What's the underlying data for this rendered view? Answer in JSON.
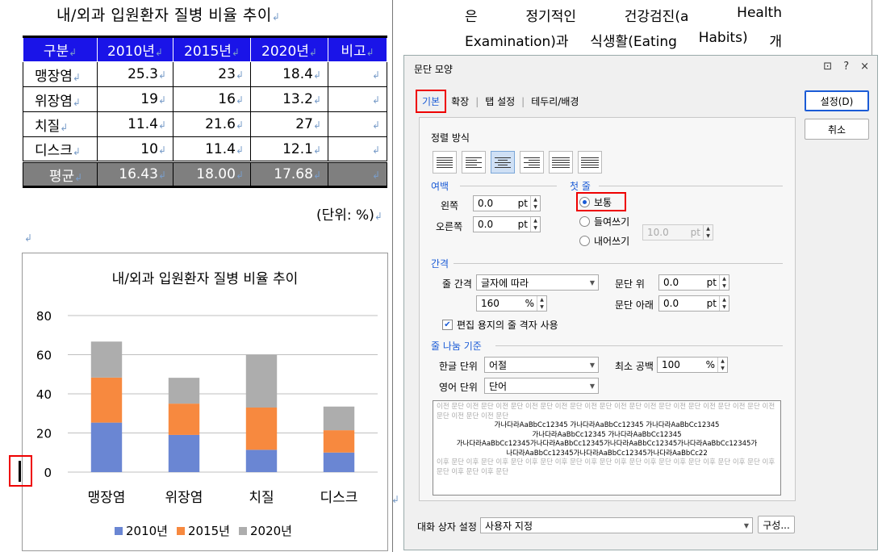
{
  "document": {
    "title": "내/외과 입원환자 질병 비율 추이",
    "table": {
      "headers": [
        "구분",
        "2010년",
        "2015년",
        "2020년",
        "비고"
      ],
      "rows": [
        [
          "맹장염",
          "25.3",
          "23",
          "18.4",
          ""
        ],
        [
          "위장염",
          "19",
          "16",
          "13.2",
          ""
        ],
        [
          "치질",
          "11.4",
          "21.6",
          "27",
          ""
        ],
        [
          "디스크",
          "10",
          "11.4",
          "12.1",
          ""
        ]
      ],
      "average": [
        "평균",
        "16.43",
        "18.00",
        "17.68",
        ""
      ]
    },
    "unit_note": "(단위: %)",
    "right_text_line1": [
      "은",
      "정기적인",
      "건강검진(a",
      "Health"
    ],
    "right_text_line2": [
      "Examination)과",
      "식생활(Eating",
      "Habits)",
      "개"
    ]
  },
  "chart_data": {
    "type": "bar",
    "stacked": true,
    "title": "내/외과 입원환자 질병 비율 추이",
    "categories": [
      "맹장염",
      "위장염",
      "치질",
      "디스크"
    ],
    "series": [
      {
        "name": "2010년",
        "values": [
          25.3,
          19,
          11.4,
          10
        ],
        "color": "#6a86d3"
      },
      {
        "name": "2015년",
        "values": [
          23,
          16,
          21.6,
          11.4
        ],
        "color": "#f7893f"
      },
      {
        "name": "2020년",
        "values": [
          18.4,
          13.2,
          27,
          12.1
        ],
        "color": "#adadad"
      }
    ],
    "ylim": [
      0,
      80
    ],
    "yticks": [
      0,
      20,
      40,
      60,
      80
    ],
    "grid": true,
    "legend_position": "bottom"
  },
  "dialog": {
    "title": "문단 모양",
    "controls": [
      "⊡",
      "?",
      "×"
    ],
    "tabs": [
      "기본",
      "확장",
      "탭 설정",
      "테두리/배경"
    ],
    "alignment_label": "정렬 방식",
    "margin_section": "여백",
    "left_label": "왼쪽",
    "left_value": "0.0",
    "right_label": "오른쪽",
    "right_value": "0.0",
    "pt": "pt",
    "first_line_section": "첫 줄",
    "first_line_options": [
      "보통",
      "들여쓰기",
      "내어쓰기"
    ],
    "first_line_value": "10.0",
    "spacing_section": "간격",
    "line_spacing_label": "줄 간격",
    "line_spacing_value": "글자에 따라",
    "line_spacing_percent": "160",
    "percent": "%",
    "para_above_label": "문단 위",
    "para_above_value": "0.0",
    "para_below_label": "문단 아래",
    "para_below_value": "0.0",
    "grid_check_label": "편집 용지의 줄 격자 사용",
    "break_section": "줄 나눔 기준",
    "korean_unit_label": "한글 단위",
    "korean_unit_value": "어절",
    "english_unit_label": "영어 단위",
    "english_unit_value": "단어",
    "min_space_label": "최소 공백",
    "min_space_value": "100",
    "preview_before": "이전 문단 이전 문단 이전 문단 이전 문단 이전 문단 이전 문단 이전 문단 이전 문단 이전 문단 이전 문단 이전 문단 이전 문단 이전 문단 이전 문단",
    "preview_current": [
      "가나다라AaBbCc12345 가나다라AaBbCc12345 가나다라AaBbCc12345",
      "가나다라AaBbCc12345 가나다라AaBbCc12345",
      "가나다라AaBbCc12345가나다라AaBbCc12345가나다라AaBbCc12345가나다라AaBbCc12345가",
      "나다라AaBbCc12345가나다라AaBbCc12345가나다라AaBbCc22"
    ],
    "preview_after": "이후 문단 이후 문단 이후 문단 이후 문단 이후 문단 이후 문단 이후 문단 이후 문단 이후 문단 이후 문단 이후 문단 이후 문단 이후 문단 이후 문단",
    "dialog_setting_label": "대화 상자 설정",
    "dialog_setting_value": "사용자 지정",
    "compose_button": "구성...",
    "ok_button": "설정(D)",
    "cancel_button": "취소"
  }
}
